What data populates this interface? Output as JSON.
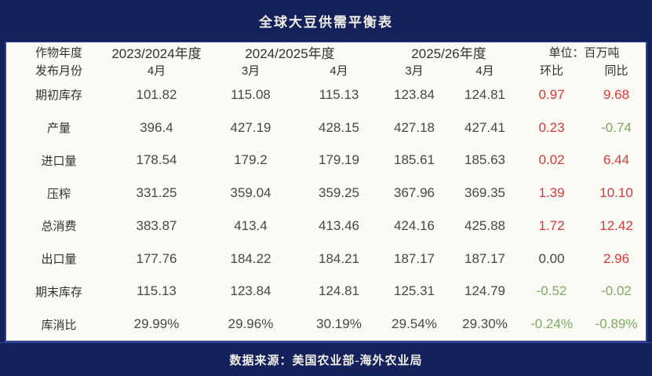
{
  "title": "全球大豆供需平衡表",
  "footer": "数据来源：美国农业部-海外农业局",
  "colors": {
    "navy": "#14215a",
    "table_bg": "#fcfaf5",
    "edge_blue": "#2c429c",
    "label_text": "#30302e",
    "num_text": "#474744",
    "red": "#d43c3c",
    "green": "#7caa60",
    "title_text": "#f2efe8"
  },
  "chart_data": {
    "type": "table",
    "title": "全球大豆供需平衡表",
    "unit_label": "单位：百万吨",
    "year_header": {
      "label": "作物年度",
      "groups": [
        {
          "label": "2023/2024年度",
          "span": 1,
          "style": "year"
        },
        {
          "label": "2024/2025年度",
          "span": 2,
          "style": "year"
        },
        {
          "label": "2025/26年度",
          "span": 2,
          "style": "year"
        },
        {
          "label": "单位：百万吨",
          "span": 2,
          "style": "unit"
        }
      ]
    },
    "month_header": {
      "label": "发布月份",
      "cells": [
        "4月",
        "3月",
        "4月",
        "3月",
        "4月",
        "环比",
        "同比"
      ]
    },
    "rows": [
      {
        "label": "期初库存",
        "values": [
          "101.82",
          "115.08",
          "115.13",
          "123.84",
          "124.81",
          "0.97",
          "9.68"
        ],
        "change_colors": [
          "red",
          "red"
        ]
      },
      {
        "label": "产量",
        "values": [
          "396.4",
          "427.19",
          "428.15",
          "427.18",
          "427.41",
          "0.23",
          "-0.74"
        ],
        "change_colors": [
          "red",
          "green"
        ]
      },
      {
        "label": "进口量",
        "values": [
          "178.54",
          "179.2",
          "179.19",
          "185.61",
          "185.63",
          "0.02",
          "6.44"
        ],
        "change_colors": [
          "red",
          "red"
        ]
      },
      {
        "label": "压榨",
        "values": [
          "331.25",
          "359.04",
          "359.25",
          "367.96",
          "369.35",
          "1.39",
          "10.10"
        ],
        "change_colors": [
          "red",
          "red"
        ]
      },
      {
        "label": "总消费",
        "values": [
          "383.87",
          "413.4",
          "413.46",
          "424.16",
          "425.88",
          "1.72",
          "12.42"
        ],
        "change_colors": [
          "red",
          "red"
        ]
      },
      {
        "label": "出口量",
        "values": [
          "177.76",
          "184.22",
          "184.21",
          "187.17",
          "187.17",
          "0.00",
          "2.96"
        ],
        "change_colors": [
          "dark",
          "red"
        ]
      },
      {
        "label": "期末库存",
        "values": [
          "115.13",
          "123.84",
          "124.81",
          "125.31",
          "124.79",
          "-0.52",
          "-0.02"
        ],
        "change_colors": [
          "green",
          "green"
        ]
      },
      {
        "label": "库消比",
        "values": [
          "29.99%",
          "29.96%",
          "30.19%",
          "29.54%",
          "29.30%",
          "-0.24%",
          "-0.89%"
        ],
        "change_colors": [
          "green",
          "green"
        ]
      }
    ]
  }
}
